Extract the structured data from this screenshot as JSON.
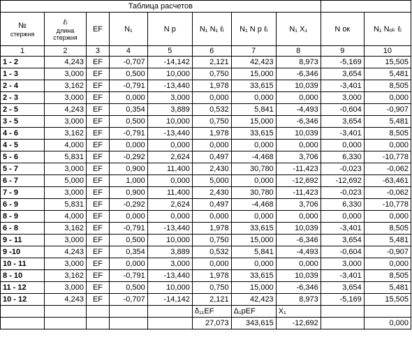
{
  "title": "Таблица расчетов",
  "headers": {
    "col1_line1": "№",
    "col1_line2": "стержня",
    "col2_symbol": "ℓᵢ",
    "col2_line2": "длина",
    "col2_line3": "стержня",
    "col3": "EF",
    "col4": "N₁",
    "col5": "N р",
    "col6": "N₁ N₁ ℓᵢ",
    "col7": "N₁ N р ℓᵢ",
    "col8": "N₁ X₁",
    "col9": "N ок",
    "col10": "N₁ Nₒₖ ℓᵢ"
  },
  "col_numbers": [
    "1",
    "2",
    "3",
    "4",
    "5",
    "6",
    "7",
    "8",
    "9",
    "10"
  ],
  "rows": [
    {
      "bar": "1 - 2",
      "len": "4,243",
      "ef": "EF",
      "n1": "-0,707",
      "np": "-14,142",
      "n1n1l": "2,121",
      "n1npl": "42,423",
      "n1x1": "8,973",
      "nok": "-5,169",
      "n1nokl": "15,505"
    },
    {
      "bar": "1 - 3",
      "len": "3,000",
      "ef": "EF",
      "n1": "0,500",
      "np": "10,000",
      "n1n1l": "0,750",
      "n1npl": "15,000",
      "n1x1": "-6,346",
      "nok": "3,654",
      "n1nokl": "5,481"
    },
    {
      "bar": "2 - 4",
      "len": "3,162",
      "ef": "EF",
      "n1": "-0,791",
      "np": "-13,440",
      "n1n1l": "1,978",
      "n1npl": "33,615",
      "n1x1": "10,039",
      "nok": "-3,401",
      "n1nokl": "8,505"
    },
    {
      "bar": "2 - 3",
      "len": "3,000",
      "ef": "EF",
      "n1": "0,000",
      "np": "3,000",
      "n1n1l": "0,000",
      "n1npl": "0,000",
      "n1x1": "0,000",
      "nok": "3,000",
      "n1nokl": "0,000"
    },
    {
      "bar": "2 - 5",
      "len": "4,243",
      "ef": "EF",
      "n1": "0,354",
      "np": "3,889",
      "n1n1l": "0,532",
      "n1npl": "5,841",
      "n1x1": "-4,493",
      "nok": "-0,604",
      "n1nokl": "-0,907"
    },
    {
      "bar": "3 - 5",
      "len": "3,000",
      "ef": "EF",
      "n1": "0,500",
      "np": "10,000",
      "n1n1l": "0,750",
      "n1npl": "15,000",
      "n1x1": "-6,346",
      "nok": "3,654",
      "n1nokl": "5,481"
    },
    {
      "bar": "4 - 6",
      "len": "3,162",
      "ef": "EF",
      "n1": "-0,791",
      "np": "-13,440",
      "n1n1l": "1,978",
      "n1npl": "33,615",
      "n1x1": "10,039",
      "nok": "-3,401",
      "n1nokl": "8,505"
    },
    {
      "bar": "4 - 5",
      "len": "4,000",
      "ef": "EF",
      "n1": "0,000",
      "np": "0,000",
      "n1n1l": "0,000",
      "n1npl": "0,000",
      "n1x1": "0,000",
      "nok": "0,000",
      "n1nokl": "0,000"
    },
    {
      "bar": "5 - 6",
      "len": "5,831",
      "ef": "EF",
      "n1": "-0,292",
      "np": "2,624",
      "n1n1l": "0,497",
      "n1npl": "-4,468",
      "n1x1": "3,706",
      "nok": "6,330",
      "n1nokl": "-10,778"
    },
    {
      "bar": "5 - 7",
      "len": "3,000",
      "ef": "EF",
      "n1": "0,900",
      "np": "11,400",
      "n1n1l": "2,430",
      "n1npl": "30,780",
      "n1x1": "-11,423",
      "nok": "-0,023",
      "n1nokl": "-0,062"
    },
    {
      "bar": "6 - 7",
      "len": "5,000",
      "ef": "EF",
      "n1": "1,000",
      "np": "0,000",
      "n1n1l": "5,000",
      "n1npl": "0,000",
      "n1x1": "-12,692",
      "nok": "-12,692",
      "n1nokl": "-63,461"
    },
    {
      "bar": "7 - 9",
      "len": "3,000",
      "ef": "EF",
      "n1": "0,900",
      "np": "11,400",
      "n1n1l": "2,430",
      "n1npl": "30,780",
      "n1x1": "-11,423",
      "nok": "-0,023",
      "n1nokl": "-0,062"
    },
    {
      "bar": "6 - 9",
      "len": "5,831",
      "ef": "EF",
      "n1": "-0,292",
      "np": "2,624",
      "n1n1l": "0,497",
      "n1npl": "-4,468",
      "n1x1": "3,706",
      "nok": "6,330",
      "n1nokl": "-10,778"
    },
    {
      "bar": "8 - 9",
      "len": "4,000",
      "ef": "EF",
      "n1": "0,000",
      "np": "0,000",
      "n1n1l": "0,000",
      "n1npl": "0,000",
      "n1x1": "0,000",
      "nok": "0,000",
      "n1nokl": "0,000"
    },
    {
      "bar": "6 - 8",
      "len": "3,162",
      "ef": "EF",
      "n1": "-0,791",
      "np": "-13,440",
      "n1n1l": "1,978",
      "n1npl": "33,615",
      "n1x1": "10,039",
      "nok": "-3,401",
      "n1nokl": "8,505"
    },
    {
      "bar": "9 - 11",
      "len": "3,000",
      "ef": "EF",
      "n1": "0,500",
      "np": "10,000",
      "n1n1l": "0,750",
      "n1npl": "15,000",
      "n1x1": "-6,346",
      "nok": "3,654",
      "n1nokl": "5,481"
    },
    {
      "bar": "9 -10",
      "len": "4,243",
      "ef": "EF",
      "n1": "0,354",
      "np": "3,889",
      "n1n1l": "0,532",
      "n1npl": "5,841",
      "n1x1": "-4,493",
      "nok": "-0,604",
      "n1nokl": "-0,907"
    },
    {
      "bar": "10 - 11",
      "len": "3,000",
      "ef": "EF",
      "n1": "0,000",
      "np": "3,000",
      "n1n1l": "0,000",
      "n1npl": "0,000",
      "n1x1": "0,000",
      "nok": "3,000",
      "n1nokl": "0,000"
    },
    {
      "bar": "8 - 10",
      "len": "3,162",
      "ef": "EF",
      "n1": "-0,791",
      "np": "-13,440",
      "n1n1l": "1,978",
      "n1npl": "33,615",
      "n1x1": "10,039",
      "nok": "-3,401",
      "n1nokl": "8,505"
    },
    {
      "bar": "11 - 12",
      "len": "3,000",
      "ef": "EF",
      "n1": "0,500",
      "np": "10,000",
      "n1n1l": "0,750",
      "n1npl": "15,000",
      "n1x1": "-6,346",
      "nok": "3,654",
      "n1nokl": "5,481"
    },
    {
      "bar": "10 - 12",
      "len": "4,243",
      "ef": "EF",
      "n1": "-0,707",
      "np": "-14,142",
      "n1n1l": "2,121",
      "n1npl": "42,423",
      "n1x1": "8,973",
      "nok": "-5,169",
      "n1nokl": "15,505"
    }
  ],
  "summary": {
    "delta11_label": "δ₁₁EF",
    "delta1p_label": "Δ₁рEF",
    "x1_label": "X₁",
    "delta11_value": "27,073",
    "delta1p_value": "343,615",
    "x1_value": "-12,692",
    "check_value": "0,000"
  }
}
